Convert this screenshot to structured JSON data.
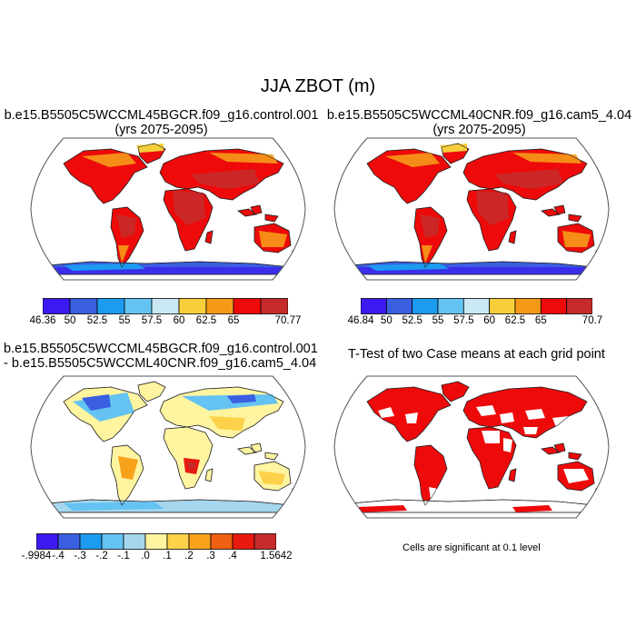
{
  "title": "JJA ZBOT (m)",
  "panels": {
    "control": {
      "title_line1": "b.e15.B5505C5WCCML45BGCR.f09_g16.control.001",
      "title_line2": "(yrs 2075-2095)",
      "colorbar": {
        "labels": [
          "46.36",
          "50",
          "52.5",
          "55",
          "57.5",
          "60",
          "62.5",
          "65",
          "70.77"
        ],
        "colors": [
          "#3b19f0",
          "#3a5fe0",
          "#1c9bf0",
          "#64c3f2",
          "#c9e8f4",
          "#f7cf3b",
          "#f59a18",
          "#ee0a0a",
          "#c62a2a"
        ]
      }
    },
    "cam5": {
      "title_line1": "b.e15.B5505C5WCCML40CNR.f09_g16.cam5_4.04",
      "title_line2": "(yrs 2075-2095)",
      "colorbar": {
        "labels": [
          "46.84",
          "50",
          "52.5",
          "55",
          "57.5",
          "60",
          "62.5",
          "65",
          "70.7"
        ],
        "colors": [
          "#3b19f0",
          "#3a5fe0",
          "#1c9bf0",
          "#64c3f2",
          "#c9e8f4",
          "#f7cf3b",
          "#f59a18",
          "#ee0a0a",
          "#c62a2a"
        ]
      }
    },
    "difference": {
      "title_line1": "b.e15.B5505C5WCCML45BGCR.f09_g16.control.001",
      "title_line2": "- b.e15.B5505C5WCCML40CNR.f09_g16.cam5_4.04",
      "colorbar": {
        "labels": [
          "-.9984",
          "-.4",
          "-.3",
          "-.2",
          "-.1",
          ".0",
          ".1",
          ".2",
          ".3",
          ".4",
          "1.5642"
        ],
        "colors": [
          "#3b19f0",
          "#3a5fe0",
          "#1c9bf0",
          "#64c3f2",
          "#a6d6ee",
          "#fff4a0",
          "#fdd24a",
          "#f8a21c",
          "#f06012",
          "#e81a10",
          "#c62a2a"
        ]
      }
    },
    "ttest": {
      "title": "T-Test of two Case means at each grid point",
      "footnote": "Cells are significant at 0.1 level",
      "significant_color": "#ee0a0a"
    }
  }
}
